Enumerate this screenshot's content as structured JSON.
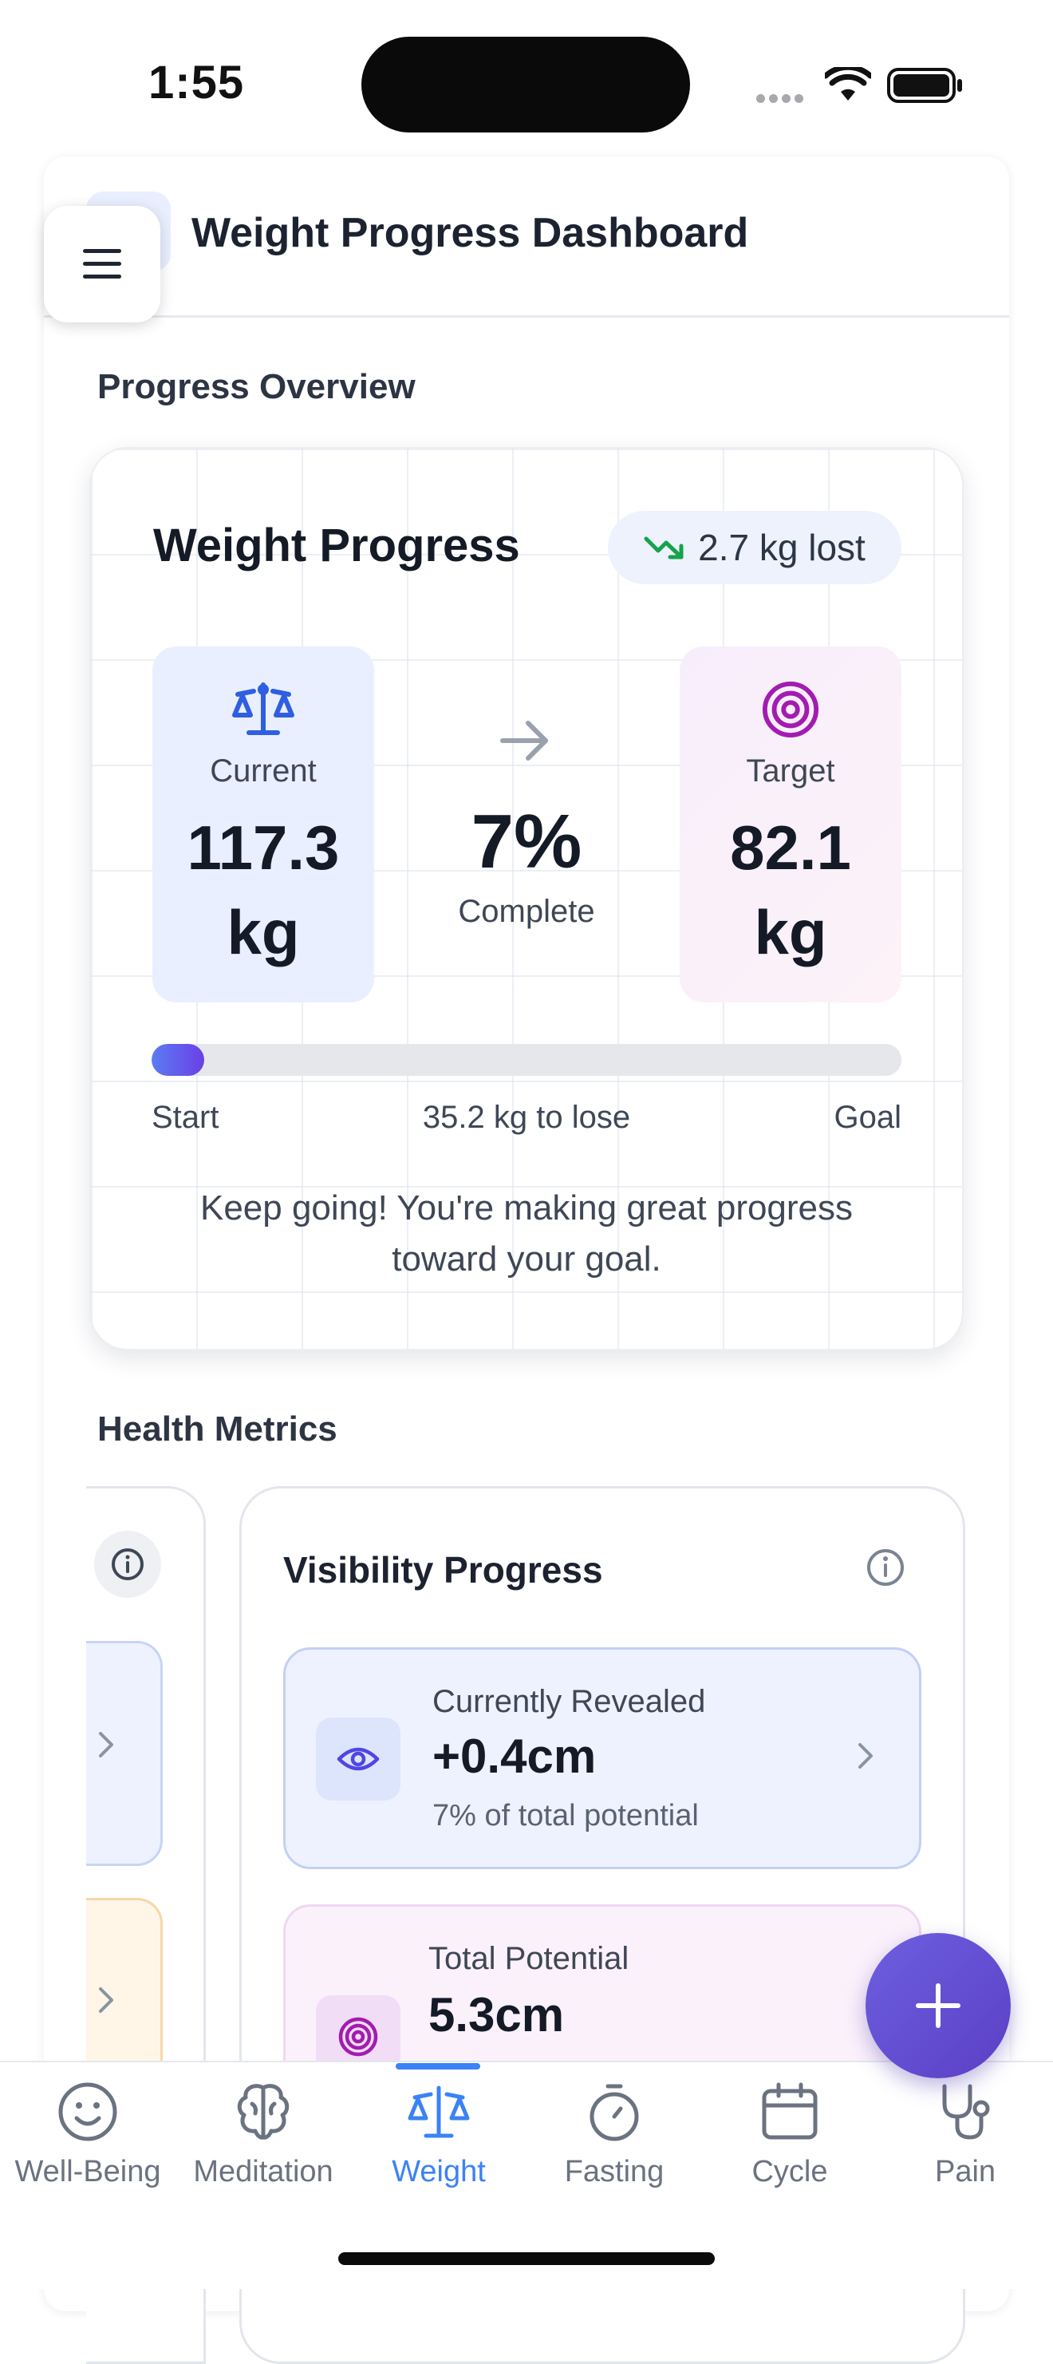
{
  "status_bar": {
    "time": "1:55"
  },
  "header": {
    "title": "Weight Progress Dashboard",
    "menu_icon": "hamburger-menu-icon"
  },
  "progress_overview": {
    "section_title": "Progress Overview",
    "card_title": "Weight Progress",
    "lost_badge": "2.7 kg lost",
    "current": {
      "label": "Current",
      "value": "117.3",
      "unit": "kg"
    },
    "target": {
      "label": "Target",
      "value": "82.1",
      "unit": "kg"
    },
    "percent": "7%",
    "percent_label": "Complete",
    "progress_fraction": 0.07,
    "bar_start": "Start",
    "bar_middle": "35.2 kg to lose",
    "bar_goal": "Goal",
    "motivation": "Keep going! You're making great progress toward your goal."
  },
  "health_metrics": {
    "section_title": "Health Metrics",
    "visibility": {
      "title": "Visibility Progress",
      "revealed": {
        "label": "Currently Revealed",
        "value": "+0.4cm",
        "sub": "7% of total potential"
      },
      "potential": {
        "label": "Total Potential",
        "value": "5.3cm"
      }
    }
  },
  "nav": {
    "items": [
      {
        "label": "Well-Being",
        "icon": "smiley-icon"
      },
      {
        "label": "Meditation",
        "icon": "brain-icon"
      },
      {
        "label": "Weight",
        "icon": "scale-icon",
        "active": true
      },
      {
        "label": "Fasting",
        "icon": "stopwatch-icon"
      },
      {
        "label": "Cycle",
        "icon": "calendar-icon"
      },
      {
        "label": "Pain",
        "icon": "stethoscope-icon"
      }
    ]
  },
  "colors": {
    "accent": "#3b82f6",
    "progress_bar": "#5b6cf0",
    "fab": "#5f4cd6",
    "lost_badge_icon": "#16a34a",
    "target_icon": "#a21caf"
  }
}
